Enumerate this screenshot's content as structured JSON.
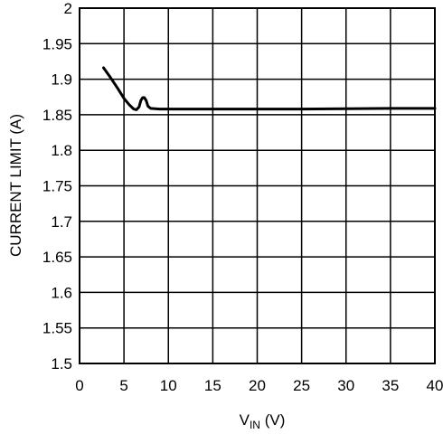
{
  "chart_data": {
    "type": "line",
    "title": "",
    "xlabel": {
      "main": "V",
      "sub": "IN",
      "unit": " (V)"
    },
    "ylabel": "CURRENT LIMIT (A)",
    "xlim": [
      0,
      40
    ],
    "ylim": [
      1.5,
      2.0
    ],
    "grid": true,
    "x_ticks": [
      0,
      5,
      10,
      15,
      20,
      25,
      30,
      35,
      40
    ],
    "x_tick_labels": [
      "0",
      "5",
      "10",
      "15",
      "20",
      "25",
      "30",
      "35",
      "40"
    ],
    "y_ticks": [
      1.5,
      1.55,
      1.6,
      1.65,
      1.7,
      1.75,
      1.8,
      1.85,
      1.9,
      1.95,
      2.0
    ],
    "y_tick_labels": [
      "1.5",
      "1.55",
      "1.6",
      "1.65",
      "1.7",
      "1.75",
      "1.8",
      "1.85",
      "1.9",
      "1.95",
      "2"
    ],
    "series": [
      {
        "x": [
          2.7,
          3.5,
          4.3,
          5.0,
          5.6,
          6.1,
          6.4,
          6.7,
          6.9,
          7.1,
          7.3,
          7.5,
          7.7,
          8.0,
          8.5,
          9.0,
          10,
          15,
          20,
          25,
          30,
          35,
          40
        ],
        "y": [
          1.916,
          1.902,
          1.887,
          1.873,
          1.864,
          1.858,
          1.857,
          1.861,
          1.87,
          1.874,
          1.874,
          1.87,
          1.862,
          1.859,
          1.8585,
          1.858,
          1.858,
          1.858,
          1.858,
          1.858,
          1.8585,
          1.859,
          1.859
        ]
      }
    ]
  }
}
